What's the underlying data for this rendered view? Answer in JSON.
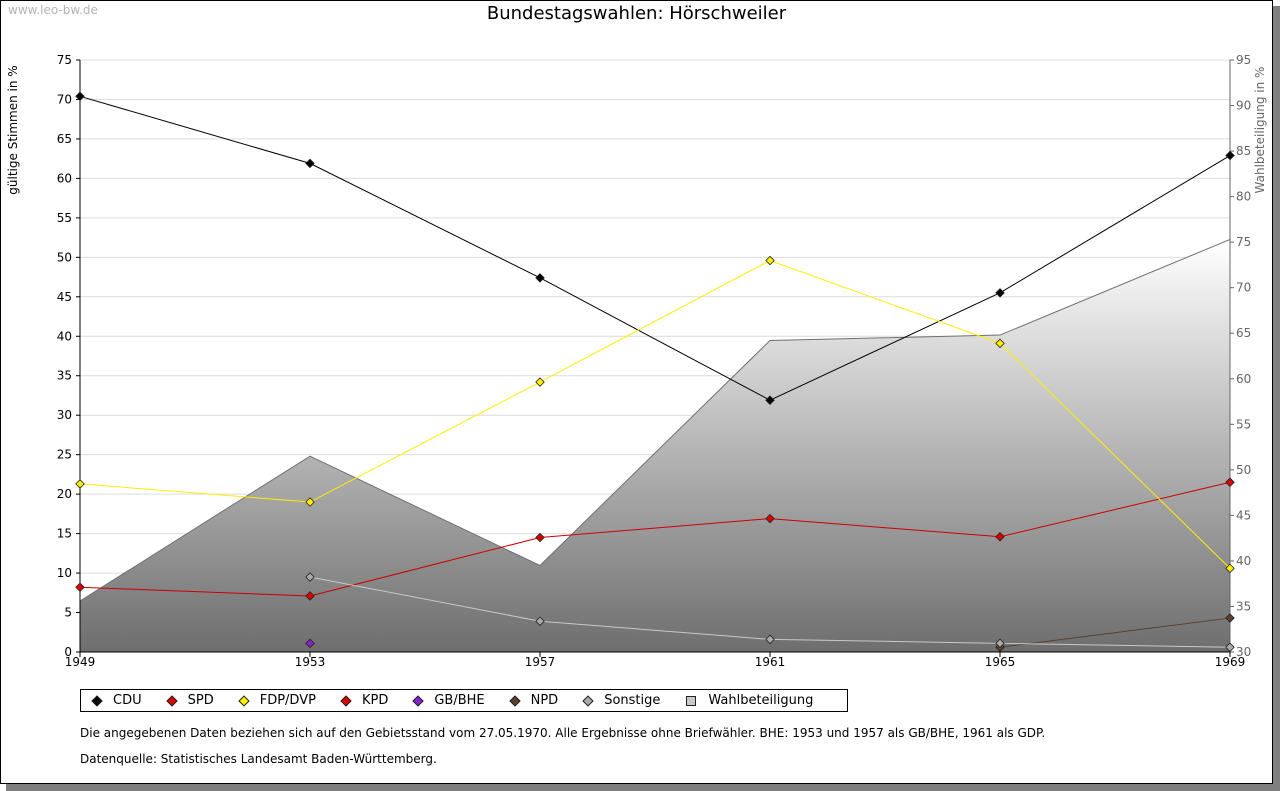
{
  "watermark": "www.leo-bw.de",
  "chart_data": {
    "type": "line",
    "title": "Bundestagswahlen: Hörschweiler",
    "ylabel": "gültige Stimmen in %",
    "y2label": "Wahlbeteiligung in %",
    "x": [
      1949,
      1953,
      1957,
      1961,
      1965,
      1969
    ],
    "x_tick_labels": [
      "1949",
      "1953",
      "1957",
      "1961",
      "1965",
      "1969"
    ],
    "ylim": [
      0,
      75
    ],
    "y_ticks": [
      "0",
      "5",
      "10",
      "15",
      "20",
      "25",
      "30",
      "35",
      "40",
      "45",
      "50",
      "55",
      "60",
      "65",
      "70",
      "75"
    ],
    "y2lim": [
      30,
      95
    ],
    "y2_ticks": [
      "30",
      "35",
      "40",
      "45",
      "50",
      "55",
      "60",
      "65",
      "70",
      "75",
      "80",
      "85",
      "90",
      "95"
    ],
    "grid": true,
    "series": [
      {
        "name": "CDU",
        "color": "#000000",
        "line": "#000000",
        "values": [
          70.4,
          61.9,
          47.4,
          31.9,
          45.5,
          62.9
        ]
      },
      {
        "name": "SPD",
        "color": "#dd0000",
        "line": "#cc0000",
        "values": [
          8.2,
          7.1,
          14.5,
          16.9,
          14.6,
          21.5
        ]
      },
      {
        "name": "FDP/DVP",
        "color": "#ffee00",
        "line": "#ffee00",
        "values": [
          21.3,
          19.0,
          34.2,
          49.6,
          39.1,
          10.6
        ]
      },
      {
        "name": "KPD",
        "color": "#dd0000",
        "line": "#cc0000",
        "values": [
          null,
          null,
          null,
          null,
          null,
          null
        ]
      },
      {
        "name": "GB/BHE",
        "color": "#8822cc",
        "line": "#8822cc",
        "values": [
          null,
          1.1,
          null,
          null,
          null,
          null
        ]
      },
      {
        "name": "NPD",
        "color": "#5a4030",
        "line": "#5a4030",
        "values": [
          null,
          null,
          null,
          null,
          0.6,
          4.3
        ]
      },
      {
        "name": "Sonstige",
        "color": "#aaaaaa",
        "line": "#c8c8c8",
        "values": [
          null,
          9.5,
          3.9,
          1.6,
          1.1,
          0.6
        ]
      }
    ],
    "area_series": {
      "name": "Wahlbeteiligung",
      "axis": "right",
      "values": [
        35.6,
        51.5,
        39.5,
        64.2,
        64.8,
        75.3
      ]
    },
    "legend_position": "bottom"
  },
  "legend": [
    {
      "label": "CDU",
      "color": "#000000"
    },
    {
      "label": "SPD",
      "color": "#dd0000"
    },
    {
      "label": "FDP/DVP",
      "color": "#ffee00"
    },
    {
      "label": "KPD",
      "color": "#dd0000"
    },
    {
      "label": "GB/BHE",
      "color": "#8822cc"
    },
    {
      "label": "NPD",
      "color": "#5a4030"
    },
    {
      "label": "Sonstige",
      "color": "#aaaaaa"
    }
  ],
  "legend_area_label": "Wahlbeteiligung",
  "notes": {
    "line1": "Die angegebenen Daten beziehen sich auf den Gebietsstand vom 27.05.1970. Alle Ergebnisse ohne Briefwähler. BHE: 1953 und 1957 als GB/BHE, 1961 als GDP.",
    "line2": "Datenquelle: Statistisches Landesamt Baden-Württemberg."
  }
}
